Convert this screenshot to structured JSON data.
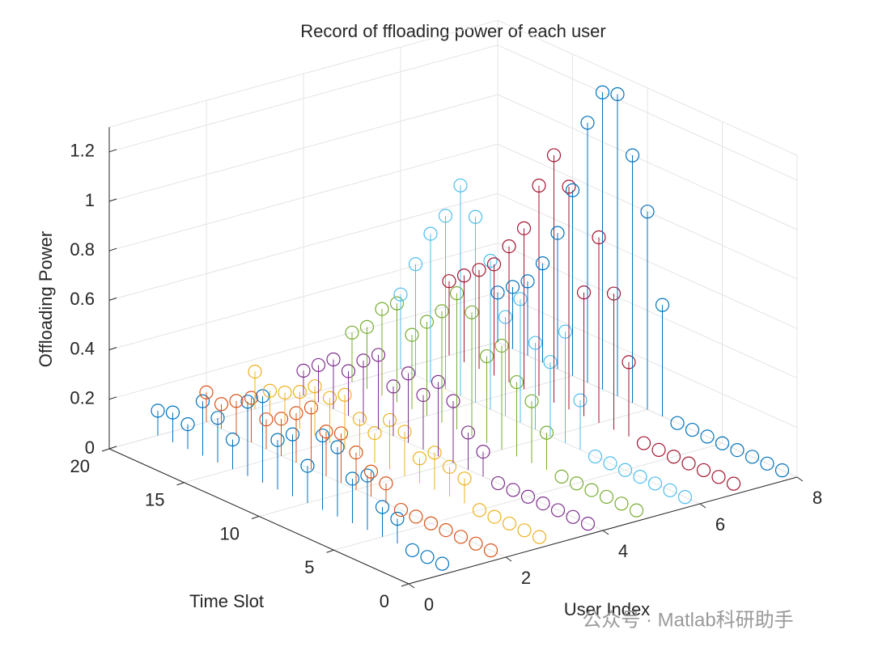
{
  "chart_data": {
    "type": "stem3",
    "title": "Record of ffloading power of each user",
    "xlabel": "User Index",
    "ylabel": "Time Slot",
    "zlabel": "Offloading Power",
    "watermark": "公众号 · Matlab科研助手",
    "xlim": [
      0,
      8
    ],
    "ylim": [
      0,
      20
    ],
    "zlim": [
      0,
      1.3
    ],
    "xticks": [
      0,
      2,
      4,
      6,
      8
    ],
    "yticks": [
      0,
      5,
      10,
      15,
      20
    ],
    "zticks": [
      0,
      0.2,
      0.4,
      0.6,
      0.8,
      1,
      1.2
    ],
    "grid": true,
    "y": [
      1,
      2,
      3,
      4,
      5,
      6,
      7,
      8,
      9,
      10,
      11,
      12,
      13,
      14,
      15,
      16,
      17,
      18,
      19,
      20
    ],
    "series": [
      {
        "x": 1,
        "color": "#0072BD",
        "values": [
          0,
          0,
          0,
          0.1,
          0.12,
          0.22,
          0.18,
          0.28,
          0.3,
          0.15,
          0.25,
          0.2,
          0.35,
          0.3,
          0.12,
          0.18,
          0.22,
          0.1,
          0.12,
          0.1
        ]
      },
      {
        "x": 2,
        "color": "#D95319",
        "values": [
          0,
          0,
          0,
          0,
          0,
          0,
          0,
          0.08,
          0.1,
          0.15,
          0.2,
          0.18,
          0.25,
          0.2,
          0.15,
          0.12,
          0.18,
          0.14,
          0.1,
          0.12
        ]
      },
      {
        "x": 3,
        "color": "#EDB120",
        "values": [
          0,
          0,
          0,
          0,
          0,
          0.1,
          0.12,
          0.15,
          0.1,
          0.18,
          0.2,
          0.12,
          0.15,
          0.22,
          0.18,
          0.2,
          0.15,
          0.12,
          0.1,
          0.15
        ]
      },
      {
        "x": 4,
        "color": "#7E2F8E",
        "values": [
          0,
          0,
          0,
          0,
          0,
          0,
          0,
          0.1,
          0.15,
          0.25,
          0.3,
          0.22,
          0.28,
          0.2,
          0.3,
          0.25,
          0.18,
          0.2,
          0.15,
          0.1
        ]
      },
      {
        "x": 5,
        "color": "#77AC30",
        "values": [
          0,
          0,
          0,
          0,
          0,
          0,
          0.15,
          0.25,
          0.3,
          0.42,
          0.35,
          0.5,
          0.55,
          0.45,
          0.38,
          0.3,
          0.4,
          0.35,
          0.25,
          0.2
        ]
      },
      {
        "x": 6,
        "color": "#4DBEEE",
        "values": [
          0,
          0,
          0,
          0,
          0,
          0,
          0,
          0.2,
          0.45,
          0.3,
          0.35,
          0.5,
          0.4,
          0.6,
          0.75,
          0.85,
          0.7,
          0.6,
          0.45,
          0.3
        ]
      },
      {
        "x": 7,
        "color": "#A2142F",
        "values": [
          0,
          0,
          0,
          0,
          0,
          0,
          0,
          0.3,
          0.55,
          0.75,
          0.5,
          0.9,
          1.0,
          0.85,
          0.65,
          0.55,
          0.45,
          0.4,
          0.35,
          0.3
        ]
      },
      {
        "x": 8,
        "color": "#0072BD",
        "values": [
          0,
          0,
          0,
          0,
          0,
          0,
          0,
          0,
          0.45,
          0.8,
          1.0,
          1.22,
          1.2,
          1.05,
          0.75,
          0.55,
          0.4,
          0.3,
          0.25,
          0.2
        ]
      }
    ]
  }
}
